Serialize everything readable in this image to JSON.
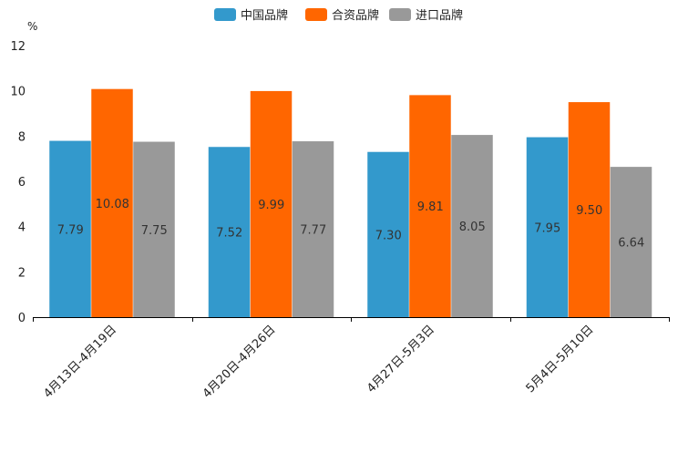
{
  "chart_data": {
    "type": "bar",
    "title": "",
    "unit_label": "%",
    "xlabel": "",
    "ylabel": "",
    "ylim": [
      0,
      12
    ],
    "yticks": [
      0,
      2,
      4,
      6,
      8,
      10,
      12
    ],
    "categories": [
      "4月13日-4月19日",
      "4月20日-4月26日",
      "4月27日-5月3日",
      "5月4日-5月10日"
    ],
    "series": [
      {
        "name": "中国品牌",
        "color": "#3399cc",
        "values": [
          7.79,
          7.52,
          7.3,
          7.95
        ],
        "labels": [
          "7.79",
          "7.52",
          "7.30",
          "7.95"
        ]
      },
      {
        "name": "合资品牌",
        "color": "#ff6600",
        "values": [
          10.08,
          9.99,
          9.81,
          9.5
        ],
        "labels": [
          "10.08",
          "9.99",
          "9.81",
          "9.50"
        ]
      },
      {
        "name": "进口品牌",
        "color": "#999999",
        "values": [
          7.75,
          7.77,
          8.05,
          6.64
        ],
        "labels": [
          "7.75",
          "7.77",
          "8.05",
          "6.64"
        ]
      }
    ],
    "legend_position": "top-center",
    "grid": false
  }
}
